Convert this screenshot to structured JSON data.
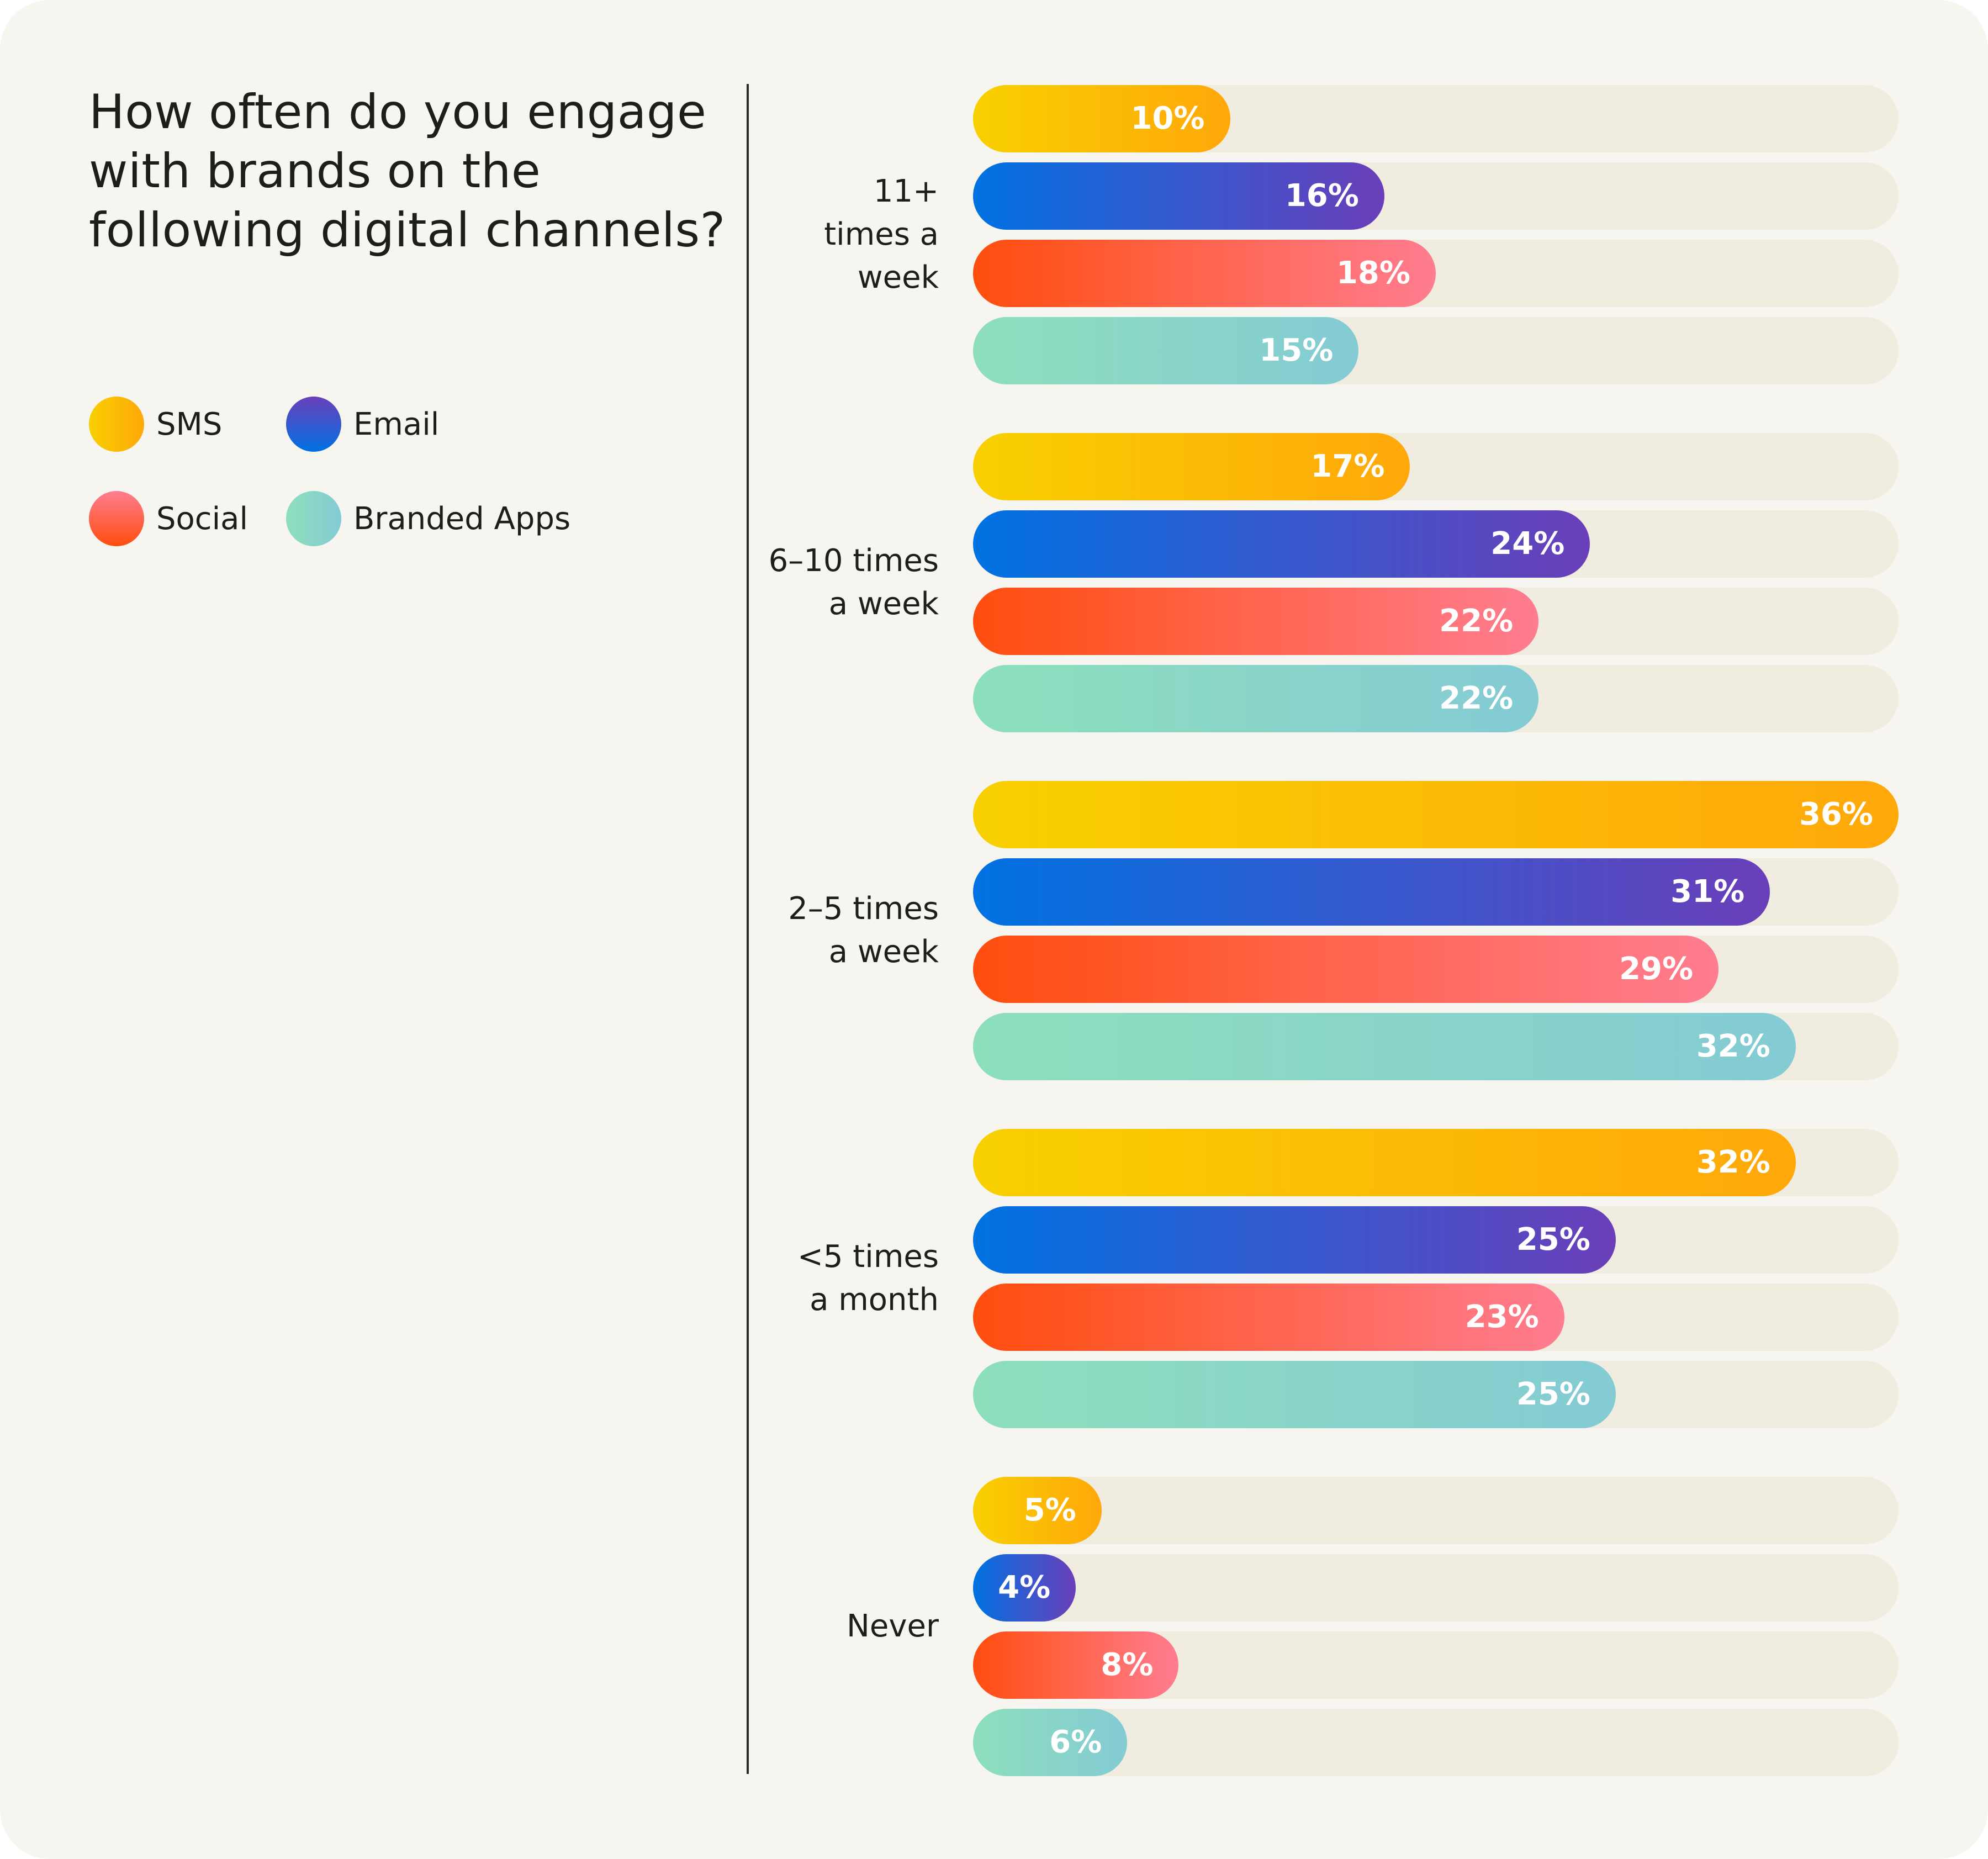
{
  "title": "How often do you engage with brands on the following digital channels?",
  "legend": [
    {
      "label": "SMS",
      "series": "sms"
    },
    {
      "label": "Email",
      "series": "email"
    },
    {
      "label": "Social",
      "series": "social"
    },
    {
      "label": "Branded Apps",
      "series": "apps"
    }
  ],
  "colors": {
    "sms": [
      "#f8d000",
      "#ffa80a"
    ],
    "email": [
      "#0072e2",
      "#6a3fb9"
    ],
    "social": [
      "#ff4d0e",
      "#ff7d90"
    ],
    "apps": [
      "#8ddfbc",
      "#84cbd4"
    ],
    "track": "#f0ece0",
    "background": "#f7f5ef"
  },
  "chart_data": {
    "type": "bar",
    "orientation": "horizontal",
    "title": "How often do you engage with brands on the following digital channels?",
    "categories": [
      "11+ times a week",
      "6–10 times a week",
      "2–5 times a week",
      "<5 times a month",
      "Never"
    ],
    "category_lines": [
      [
        "11+",
        "times a",
        "week"
      ],
      [
        "6–10 times",
        "a week"
      ],
      [
        "2–5 times",
        "a week"
      ],
      [
        "<5 times",
        "a month"
      ],
      [
        "Never"
      ]
    ],
    "series": [
      {
        "name": "SMS",
        "key": "sms",
        "values": [
          10,
          17,
          36,
          32,
          5
        ]
      },
      {
        "name": "Email",
        "key": "email",
        "values": [
          16,
          24,
          31,
          25,
          4
        ]
      },
      {
        "name": "Social",
        "key": "social",
        "values": [
          18,
          22,
          29,
          23,
          8
        ]
      },
      {
        "name": "Branded Apps",
        "key": "apps",
        "values": [
          15,
          22,
          32,
          25,
          6
        ]
      }
    ],
    "value_suffix": "%",
    "xlim": [
      0,
      36
    ],
    "legend_position": "top-left",
    "grid": false
  }
}
